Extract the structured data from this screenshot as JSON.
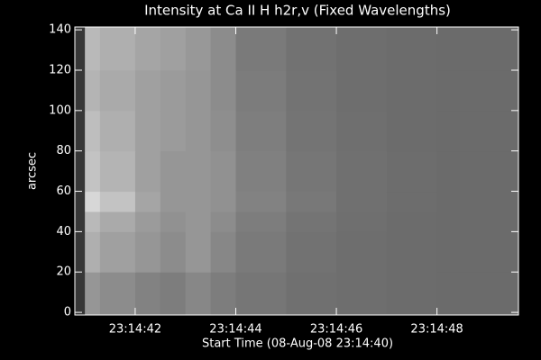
{
  "chart_data": {
    "type": "heatmap",
    "title": "Intensity at Ca II H h2r,v (Fixed Wavelengths)",
    "xlabel": "Start Time (08-Aug-08 23:14:40)",
    "ylabel": "arcsec",
    "xlim": [
      0.8,
      9.62
    ],
    "ylim": [
      -1.3,
      141.4
    ],
    "xticks": [
      {
        "value": 2,
        "label": "23:14:42"
      },
      {
        "value": 4,
        "label": "23:14:44"
      },
      {
        "value": 6,
        "label": "23:14:46"
      },
      {
        "value": 8,
        "label": "23:14:48"
      }
    ],
    "yticks": [
      0,
      20,
      40,
      60,
      80,
      100,
      120,
      140
    ],
    "xbins": [
      0.8,
      1.0,
      1.3,
      2.0,
      2.5,
      3.0,
      3.5,
      4.0,
      5.0,
      6.0,
      7.0,
      8.0,
      9.62
    ],
    "ybins": [
      -1.3,
      20,
      40,
      50,
      60,
      80,
      100,
      120,
      141.4
    ],
    "z": [
      [
        55,
        150,
        140,
        130,
        125,
        135,
        125,
        118,
        112,
        110,
        108,
        107
      ],
      [
        55,
        175,
        160,
        150,
        140,
        150,
        135,
        122,
        114,
        110,
        108,
        107
      ],
      [
        55,
        185,
        170,
        155,
        145,
        150,
        140,
        125,
        116,
        111,
        108,
        107
      ],
      [
        55,
        215,
        195,
        165,
        150,
        150,
        145,
        130,
        120,
        112,
        109,
        107
      ],
      [
        55,
        195,
        180,
        160,
        150,
        150,
        145,
        128,
        118,
        112,
        109,
        107
      ],
      [
        55,
        190,
        175,
        160,
        155,
        150,
        142,
        126,
        116,
        111,
        108,
        107
      ],
      [
        55,
        180,
        170,
        160,
        155,
        150,
        140,
        124,
        115,
        110,
        108,
        107
      ],
      [
        55,
        185,
        175,
        165,
        160,
        152,
        140,
        122,
        114,
        110,
        108,
        107
      ]
    ]
  }
}
